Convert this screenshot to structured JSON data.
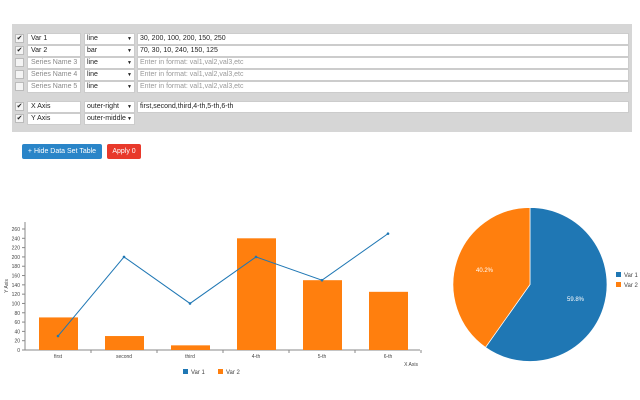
{
  "series_rows": [
    {
      "checked": true,
      "name": "Var 1",
      "placeholder": false,
      "type": "line",
      "values": "30, 200, 100, 200, 150, 250",
      "values_placeholder": false
    },
    {
      "checked": true,
      "name": "Var 2",
      "placeholder": false,
      "type": "bar",
      "values": "70, 30, 10, 240, 150, 125",
      "values_placeholder": false
    },
    {
      "checked": false,
      "name": "Series Name 3",
      "placeholder": true,
      "type": "line",
      "values": "Enter in format: val1,val2,val3,etc",
      "values_placeholder": true
    },
    {
      "checked": false,
      "name": "Series Name 4",
      "placeholder": true,
      "type": "line",
      "values": "Enter in format: val1,val2,val3,etc",
      "values_placeholder": true
    },
    {
      "checked": false,
      "name": "Series Name 5",
      "placeholder": true,
      "type": "line",
      "values": "Enter in format: val1,val2,val3,etc",
      "values_placeholder": true
    }
  ],
  "axis_rows": [
    {
      "checked": true,
      "name": "X Axis",
      "position": "outer-right",
      "values": "first,second,third,4-th,5-th,6-th"
    },
    {
      "checked": true,
      "name": "Y Axis",
      "position": "outer-middle"
    }
  ],
  "buttons": {
    "hide": "+ Hide Data Set Table",
    "apply": "Apply 0"
  },
  "colors": {
    "var1": "#1f77b4",
    "var2": "#ff7f0e",
    "apply": "#e8392b",
    "hide": "#2a85c8"
  },
  "chart_data": [
    {
      "type": "bar+line",
      "categories": [
        "first",
        "second",
        "third",
        "4-th",
        "5-th",
        "6-th"
      ],
      "series": [
        {
          "name": "Var 1",
          "type": "line",
          "values": [
            30,
            200,
            100,
            200,
            150,
            250
          ]
        },
        {
          "name": "Var 2",
          "type": "bar",
          "values": [
            70,
            30,
            10,
            240,
            150,
            125
          ]
        }
      ],
      "xlabel": "X Axis",
      "ylabel": "Y Axis",
      "ylim": [
        0,
        280
      ],
      "yticks": [
        0,
        20,
        40,
        60,
        80,
        100,
        120,
        140,
        160,
        180,
        200,
        220,
        240,
        260
      ],
      "legend": "bottom"
    },
    {
      "type": "pie",
      "series": [
        {
          "name": "Var 1",
          "value": 59.8,
          "label": "59.8%"
        },
        {
          "name": "Var 2",
          "value": 40.2,
          "label": "40.2%"
        }
      ],
      "legend": "right"
    }
  ]
}
